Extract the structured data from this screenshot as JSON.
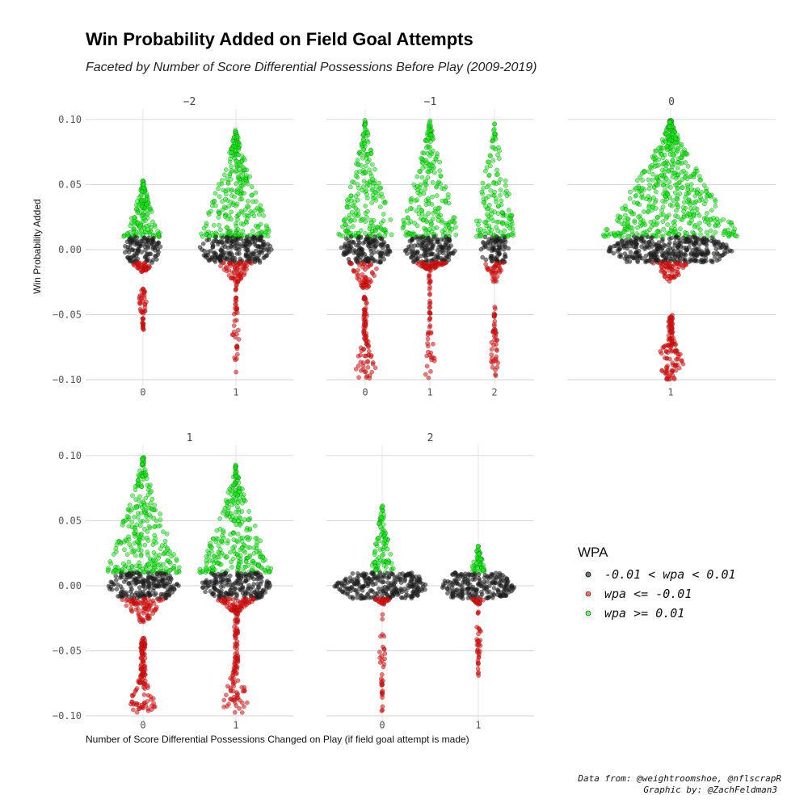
{
  "colors": {
    "neutral": "#1a1a1a",
    "negative": "#ff0000",
    "positive": "#00ff00",
    "grid": "#cccccc",
    "vgrid": "#dddddd"
  },
  "chart_data": {
    "type": "scatter",
    "subtype": "beeswarm",
    "title": "Win Probability Added on Field Goal Attempts",
    "subtitle": "Faceted by Number of Score Differential Possessions Before Play (2009-2019)",
    "xlabel": "Number of Score Differential Possessions Changed on Play (if field goal attempt is made)",
    "ylabel": "Win Probability Added",
    "ylim": [
      -0.105,
      0.108
    ],
    "y_ticks": [
      0.1,
      0.05,
      0.0,
      -0.05,
      -0.1
    ],
    "y_tick_labels": [
      "0.10",
      "0.05",
      "0.00",
      "−0.05",
      "−0.10"
    ],
    "grid": true,
    "legend": {
      "title": "WPA",
      "position": "right",
      "entries": [
        {
          "label": "-0.01 < wpa < 0.01",
          "color_key": "neutral"
        },
        {
          "label": "wpa <= -0.01",
          "color_key": "negative"
        },
        {
          "label": "wpa >= 0.01",
          "color_key": "positive"
        }
      ]
    },
    "facets": [
      {
        "label": "−2",
        "groups": [
          {
            "x": "0",
            "pos": {
              "max": 0.053,
              "peak": 0.01,
              "width": 48
            },
            "neu": {
              "width": 50
            },
            "negnear": {
              "min": -0.017,
              "width": 30
            },
            "negfar": {
              "min": -0.062,
              "max": -0.03,
              "peak": -0.04,
              "width": 12
            }
          },
          {
            "x": "1",
            "pos": {
              "max": 0.093,
              "peak": 0.012,
              "width": 90
            },
            "neu": {
              "width": 95
            },
            "negnear": {
              "min": -0.025,
              "width": 45
            },
            "negfar": {
              "min": -0.095,
              "max": -0.026,
              "peak": -0.065,
              "width": 10
            }
          }
        ]
      },
      {
        "label": "−1",
        "groups": [
          {
            "x": "0",
            "pos": {
              "max": 0.1,
              "peak": 0.02,
              "width": 66
            },
            "neu": {
              "width": 66
            },
            "negnear": {
              "min": -0.03,
              "width": 40
            },
            "negfar": {
              "min": -0.1,
              "max": -0.035,
              "peak": -0.09,
              "width": 26
            }
          },
          {
            "x": "1",
            "pos": {
              "max": 0.1,
              "peak": 0.02,
              "width": 68
            },
            "neu": {
              "width": 66
            },
            "negnear": {
              "min": -0.015,
              "width": 44
            },
            "negfar": {
              "min": -0.1,
              "max": -0.015,
              "peak": -0.088,
              "width": 14
            }
          },
          {
            "x": "2",
            "pos": {
              "max": 0.097,
              "peak": 0.03,
              "width": 46
            },
            "neu": {
              "width": 38
            },
            "negnear": {
              "min": -0.025,
              "width": 26
            },
            "negfar": {
              "min": -0.1,
              "max": -0.04,
              "peak": -0.08,
              "width": 12
            }
          }
        ]
      },
      {
        "label": "0",
        "groups": [
          {
            "x": "1",
            "pos": {
              "max": 0.1,
              "peak": 0.012,
              "width": 170
            },
            "neu": {
              "width": 160
            },
            "negnear": {
              "min": -0.025,
              "width": 44
            },
            "negfar": {
              "min": -0.1,
              "max": -0.05,
              "peak": -0.085,
              "width": 38
            }
          }
        ]
      },
      {
        "label": "1",
        "groups": [
          {
            "x": "0",
            "pos": {
              "max": 0.099,
              "peak": 0.015,
              "width": 90
            },
            "neu": {
              "width": 90
            },
            "negnear": {
              "min": -0.028,
              "width": 55
            },
            "negfar": {
              "min": -0.098,
              "max": -0.04,
              "peak": -0.09,
              "width": 38
            }
          },
          {
            "x": "1",
            "pos": {
              "max": 0.093,
              "peak": 0.012,
              "width": 90
            },
            "neu": {
              "width": 90
            },
            "negnear": {
              "min": -0.02,
              "width": 50
            },
            "negfar": {
              "min": -0.098,
              "max": -0.02,
              "peak": -0.09,
              "width": 34
            }
          }
        ]
      },
      {
        "label": "2",
        "groups": [
          {
            "x": "0",
            "pos": {
              "max": 0.065,
              "peak": 0.01,
              "width": 30
            },
            "neu": {
              "width": 120
            },
            "negnear": {
              "min": -0.015,
              "width": 20
            },
            "negfar": {
              "min": -0.098,
              "max": -0.02,
              "peak": -0.05,
              "width": 8
            }
          },
          {
            "x": "1",
            "pos": {
              "max": 0.032,
              "peak": 0.012,
              "width": 18
            },
            "neu": {
              "width": 95
            },
            "negnear": {
              "min": -0.015,
              "width": 16
            },
            "negfar": {
              "min": -0.07,
              "max": -0.02,
              "peak": -0.04,
              "width": 8
            }
          }
        ]
      }
    ],
    "caption": [
      "Data from: @weightroomshoe, @nflscrapR",
      "Graphic by: @ZachFeldman3"
    ]
  }
}
